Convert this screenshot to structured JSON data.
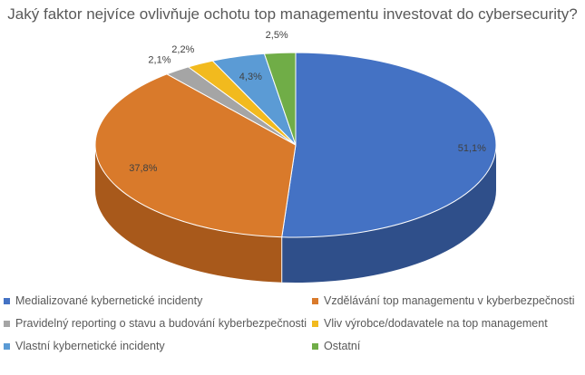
{
  "chart_data": {
    "type": "pie",
    "title": "Jaký faktor nejvíce ovlivňuje ochotu top managementu investovat do cybersecurity?",
    "slices": [
      {
        "name": "Medializované kybernetické incidenty",
        "value": 51.1,
        "label": "51,1%",
        "color": "#4472C4",
        "side": "#2F4F8A"
      },
      {
        "name": "Vzdělávání top managementu v kyberbezpečnosti",
        "value": 37.8,
        "label": "37,8%",
        "color": "#D97A2B",
        "side": "#A8591B"
      },
      {
        "name": "Pravidelný reporting o stavu a budování kyberbezpečnosti",
        "value": 2.1,
        "label": "2,1%",
        "color": "#A5A5A5",
        "side": "#7A7A7A"
      },
      {
        "name": "Vliv výrobce/dodavatele na top management",
        "value": 2.2,
        "label": "2,2%",
        "color": "#F2BA1E",
        "side": "#B88B12"
      },
      {
        "name": "Vlastní kybernetické incidenty",
        "value": 4.3,
        "label": "4,3%",
        "color": "#5B9BD5",
        "side": "#3E75A8"
      },
      {
        "name": "Ostatní",
        "value": 2.5,
        "label": "2,5%",
        "color": "#70AD47",
        "side": "#4F8232"
      }
    ],
    "legend_position": "bottom",
    "style": "3d"
  }
}
